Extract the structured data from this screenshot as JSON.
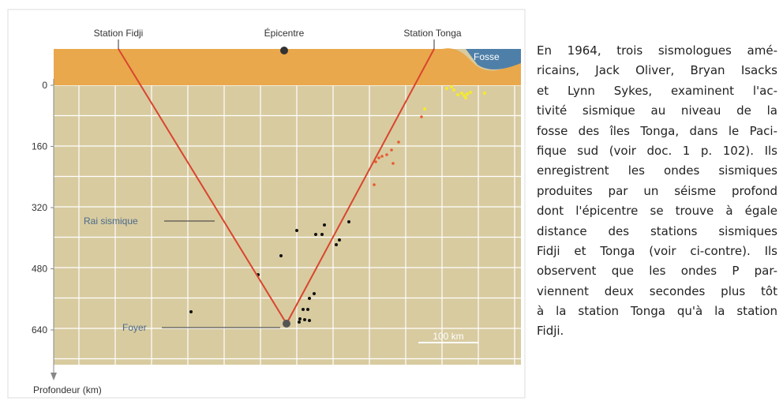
{
  "figure": {
    "labels": {
      "station_left": "Station Fidji",
      "epicenter": "Épicentre",
      "station_right": "Station Tonga",
      "trench": "Fosse",
      "ray": "Rai sismique",
      "focus": "Foyer",
      "scale": "100 km"
    },
    "y_label": "Profondeur (km)",
    "yticks": [
      0,
      160,
      320,
      480,
      640
    ]
  },
  "text": {
    "lines": [
      "En 1964, trois sismologues amé-",
      "ricains, Jack Oliver, Bryan Isacks",
      "et Lynn Sykes, examinent l'ac-",
      "tivité sismique au niveau de la",
      "fosse des îles Tonga, dans le Paci-",
      "fique sud (voir doc. 1 p. 102). Ils",
      "enregistrent les ondes sismiques",
      "produites par un séisme profond",
      "dont l'épicentre se trouve à égale",
      "distance des stations sismiques",
      "Fidji et Tonga (voir ci-contre). Ils",
      "observent que les ondes P par-",
      "viennent deux secondes plus tôt",
      "à la station Tonga qu'à la station",
      "Fidji."
    ]
  }
}
